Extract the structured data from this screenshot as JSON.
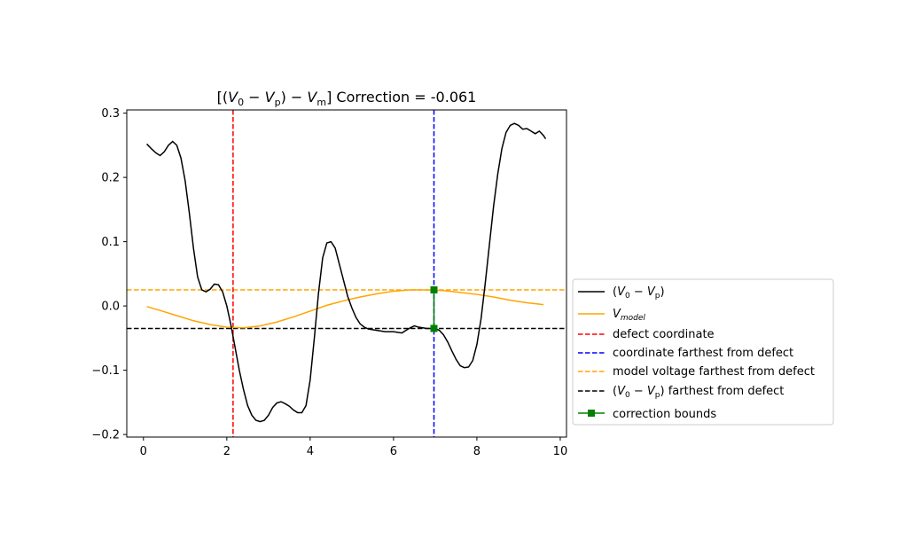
{
  "chart_data": {
    "type": "line",
    "title": {
      "prefix": "[(",
      "v0": "V",
      "v0_sub": "0",
      "minus1": " − ",
      "vp": "V",
      "vp_sub": "p",
      "mid": ") − ",
      "vm": "V",
      "vm_sub": "m",
      "suffix": "] Correction = -0.061"
    },
    "xlim": [
      -0.4,
      10.15
    ],
    "ylim": [
      -0.204,
      0.305
    ],
    "x_ticks": [
      0,
      2,
      4,
      6,
      8,
      10
    ],
    "y_ticks": [
      -0.2,
      -0.1,
      0.0,
      0.1,
      0.2,
      0.3
    ],
    "x_tick_labels": [
      "0",
      "2",
      "4",
      "6",
      "8",
      "10"
    ],
    "y_tick_labels": [
      "−0.2",
      "−0.1",
      "0.0",
      "0.1",
      "0.2",
      "0.3"
    ],
    "series": [
      {
        "key": "v0_vp",
        "color": "#000000",
        "x": [
          0.08,
          0.2,
          0.3,
          0.4,
          0.5,
          0.6,
          0.7,
          0.8,
          0.9,
          1.0,
          1.1,
          1.2,
          1.3,
          1.4,
          1.5,
          1.6,
          1.7,
          1.8,
          1.9,
          2.0,
          2.1,
          2.2,
          2.3,
          2.4,
          2.5,
          2.6,
          2.7,
          2.8,
          2.9,
          3.0,
          3.1,
          3.2,
          3.3,
          3.4,
          3.5,
          3.6,
          3.7,
          3.8,
          3.9,
          4.0,
          4.1,
          4.2,
          4.3,
          4.4,
          4.5,
          4.6,
          4.7,
          4.8,
          4.9,
          5.0,
          5.1,
          5.2,
          5.3,
          5.4,
          5.6,
          5.8,
          6.0,
          6.2,
          6.3,
          6.4,
          6.5,
          6.6,
          6.7,
          6.8,
          6.9,
          7.0,
          7.1,
          7.2,
          7.3,
          7.4,
          7.5,
          7.6,
          7.7,
          7.8,
          7.9,
          8.0,
          8.1,
          8.2,
          8.3,
          8.4,
          8.5,
          8.6,
          8.7,
          8.8,
          8.9,
          9.0,
          9.1,
          9.2,
          9.3,
          9.4,
          9.5,
          9.6,
          9.65
        ],
        "y": [
          0.252,
          0.244,
          0.238,
          0.234,
          0.24,
          0.25,
          0.256,
          0.25,
          0.23,
          0.195,
          0.145,
          0.09,
          0.045,
          0.025,
          0.022,
          0.026,
          0.034,
          0.033,
          0.022,
          0.0,
          -0.03,
          -0.065,
          -0.1,
          -0.13,
          -0.155,
          -0.17,
          -0.178,
          -0.18,
          -0.178,
          -0.17,
          -0.158,
          -0.151,
          -0.149,
          -0.152,
          -0.156,
          -0.162,
          -0.166,
          -0.166,
          -0.155,
          -0.115,
          -0.05,
          0.02,
          0.075,
          0.098,
          0.1,
          0.09,
          0.065,
          0.04,
          0.015,
          -0.003,
          -0.018,
          -0.028,
          -0.033,
          -0.036,
          -0.038,
          -0.04,
          -0.04,
          -0.042,
          -0.038,
          -0.034,
          -0.031,
          -0.033,
          -0.034,
          -0.035,
          -0.035,
          -0.035,
          -0.038,
          -0.045,
          -0.056,
          -0.07,
          -0.083,
          -0.093,
          -0.096,
          -0.095,
          -0.085,
          -0.06,
          -0.02,
          0.035,
          0.095,
          0.155,
          0.205,
          0.245,
          0.27,
          0.281,
          0.284,
          0.281,
          0.275,
          0.276,
          0.272,
          0.268,
          0.272,
          0.265,
          0.26
        ]
      },
      {
        "key": "v_model",
        "color": "#ffa500",
        "x": [
          0.08,
          0.4,
          0.8,
          1.2,
          1.6,
          2.0,
          2.4,
          2.8,
          3.2,
          3.6,
          4.0,
          4.4,
          4.8,
          5.2,
          5.6,
          6.0,
          6.4,
          6.8,
          7.2,
          7.6,
          8.0,
          8.4,
          8.8,
          9.2,
          9.6
        ],
        "y": [
          -0.001,
          -0.007,
          -0.015,
          -0.023,
          -0.029,
          -0.033,
          -0.034,
          -0.031,
          -0.025,
          -0.017,
          -0.008,
          0.001,
          0.008,
          0.014,
          0.019,
          0.023,
          0.025,
          0.025,
          0.024,
          0.021,
          0.018,
          0.014,
          0.009,
          0.005,
          0.002
        ]
      }
    ],
    "vlines": [
      {
        "key": "defect",
        "x": 2.15,
        "color": "#ff0000"
      },
      {
        "key": "farthest_coord",
        "x": 6.97,
        "color": "#0000ff"
      }
    ],
    "hlines": [
      {
        "key": "model_farthest",
        "y": 0.025,
        "color": "#ffa500"
      },
      {
        "key": "v0vp_farthest",
        "y": -0.035,
        "color": "#000000"
      }
    ],
    "bounds": {
      "key": "correction_bounds",
      "x": [
        6.97,
        6.97
      ],
      "y": [
        0.025,
        -0.035
      ],
      "color": "#008000"
    },
    "legend": {
      "placement": "right-outside",
      "v0_vp": {
        "open": "(",
        "v0": "V",
        "v0_sub": "0",
        "minus": " − ",
        "vp": "V",
        "vp_sub": "p",
        "close": ")"
      },
      "v_model": {
        "v": "V",
        "sub": "model"
      },
      "defect_coordinate": "defect coordinate",
      "coordinate_farthest": "coordinate farthest from defect",
      "model_voltage_farthest": "model voltage farthest from defect",
      "v0vp_farthest": {
        "open": "(",
        "v0": "V",
        "v0_sub": "0",
        "minus": " − ",
        "vp": "V",
        "vp_sub": "p",
        "close": ")",
        "suffix": " farthest from defect"
      },
      "correction_bounds": "correction bounds"
    }
  }
}
